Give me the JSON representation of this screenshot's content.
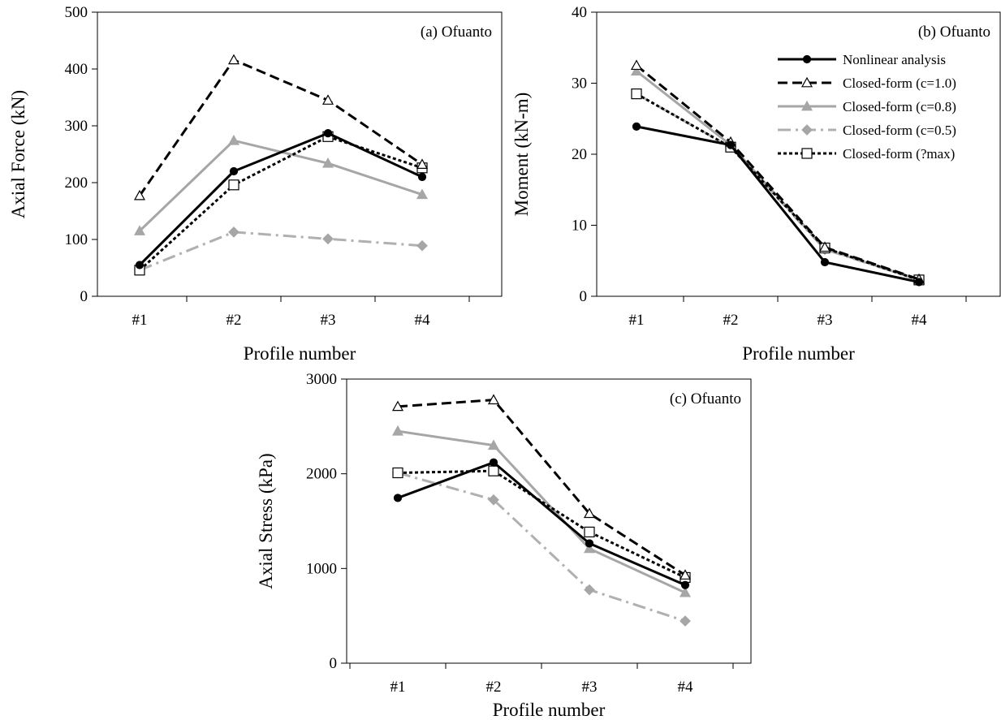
{
  "chart_data": [
    {
      "type": "line",
      "title": "(a) Ofuanto",
      "xlabel": "Profile number",
      "ylabel": "Axial Force (kN)",
      "categories": [
        "#1",
        "#2",
        "#3",
        "#4"
      ],
      "ylim": [
        0,
        500
      ],
      "yticks": [
        "0",
        "100",
        "200",
        "300",
        "400",
        "500"
      ],
      "grid": false,
      "series": [
        {
          "name": "Nonlinear analysis",
          "values": [
            55,
            220,
            287,
            210
          ]
        },
        {
          "name": "Closed-form (c=1.0)",
          "values": [
            177,
            416,
            345,
            232
          ]
        },
        {
          "name": "Closed-form (c=0.8)",
          "values": [
            115,
            274,
            234,
            179
          ]
        },
        {
          "name": "Closed-form (c=0.5)",
          "values": [
            46,
            113,
            101,
            89
          ]
        },
        {
          "name": "Closed-form (?max)",
          "values": [
            46,
            196,
            281,
            226
          ]
        }
      ]
    },
    {
      "type": "line",
      "title": "(b) Ofuanto",
      "xlabel": "Profile number",
      "ylabel": "Moment (kN-m)",
      "categories": [
        "#1",
        "#2",
        "#3",
        "#4"
      ],
      "ylim": [
        0,
        40
      ],
      "yticks": [
        "0",
        "10",
        "20",
        "30",
        "40"
      ],
      "grid": false,
      "legend": "top-right",
      "series": [
        {
          "name": "Nonlinear analysis",
          "values": [
            23.9,
            21.3,
            4.8,
            2.0
          ]
        },
        {
          "name": "Closed-form (c=1.0)",
          "values": [
            32.5,
            21.7,
            6.9,
            2.4
          ]
        },
        {
          "name": "Closed-form (c=0.8)",
          "values": [
            31.7,
            21.3,
            6.7,
            2.3
          ]
        },
        {
          "name": "Closed-form (c=0.5)",
          "values": [
            28.5,
            21.0,
            6.6,
            2.3
          ]
        },
        {
          "name": "Closed-form (?max)",
          "values": [
            28.5,
            21.0,
            6.8,
            2.3
          ]
        }
      ]
    },
    {
      "type": "line",
      "title": "(c) Ofuanto",
      "xlabel": "Profile number",
      "ylabel": "Axial Stress (kPa)",
      "categories": [
        "#1",
        "#2",
        "#3",
        "#4"
      ],
      "ylim": [
        0,
        3000
      ],
      "yticks": [
        "0",
        "1000",
        "2000",
        "3000"
      ],
      "grid": false,
      "series": [
        {
          "name": "Nonlinear analysis",
          "values": [
            1745,
            2120,
            1265,
            825
          ]
        },
        {
          "name": "Closed-form (c=1.0)",
          "values": [
            2710,
            2780,
            1580,
            930
          ]
        },
        {
          "name": "Closed-form (c=0.8)",
          "values": [
            2450,
            2300,
            1210,
            745
          ]
        },
        {
          "name": "Closed-form (c=0.5)",
          "values": [
            2010,
            1725,
            775,
            445
          ]
        },
        {
          "name": "Closed-form (?max)",
          "values": [
            2010,
            2030,
            1385,
            905
          ]
        }
      ]
    }
  ],
  "series_styles": [
    {
      "color": "#000000",
      "dash": "",
      "width": 3,
      "marker": "circle",
      "marker_fill": "#000000"
    },
    {
      "color": "#000000",
      "dash": "12,6",
      "width": 3,
      "marker": "triangle",
      "marker_fill": "#ffffff"
    },
    {
      "color": "#a6a6a6",
      "dash": "",
      "width": 3,
      "marker": "triangle",
      "marker_fill": "#a6a6a6"
    },
    {
      "color": "#b0b0b0",
      "dash": "16,6,3,6",
      "width": 3,
      "marker": "diamond",
      "marker_fill": "#a6a6a6"
    },
    {
      "color": "#000000",
      "dash": "4,3",
      "width": 3,
      "marker": "square",
      "marker_fill": "#ffffff"
    }
  ]
}
